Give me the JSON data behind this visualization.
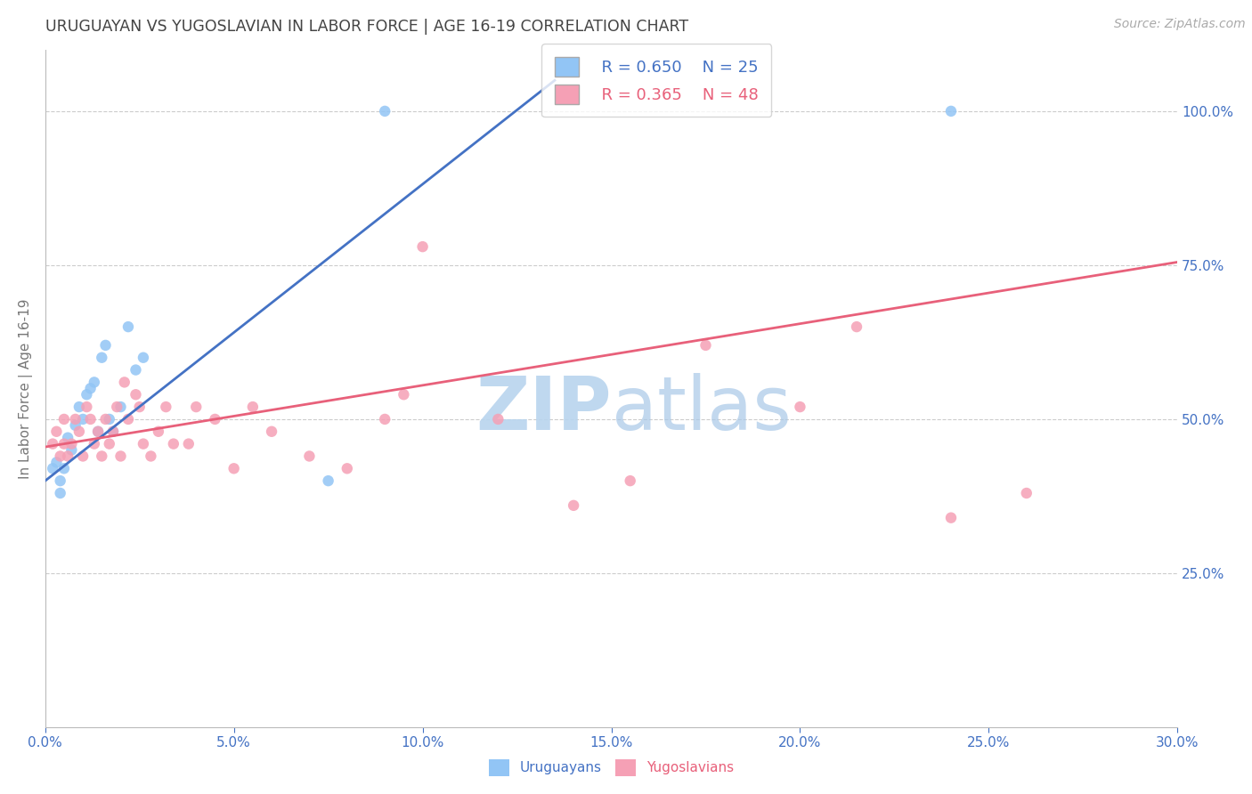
{
  "title": "URUGUAYAN VS YUGOSLAVIAN IN LABOR FORCE | AGE 16-19 CORRELATION CHART",
  "source": "Source: ZipAtlas.com",
  "ylabel_label": "In Labor Force | Age 16-19",
  "xlim": [
    0.0,
    0.3
  ],
  "ylim": [
    0.0,
    1.1
  ],
  "right_yticks": [
    0.25,
    0.5,
    0.75,
    1.0
  ],
  "right_yticklabels": [
    "25.0%",
    "50.0%",
    "75.0%",
    "100.0%"
  ],
  "xtick_values": [
    0.0,
    0.05,
    0.1,
    0.15,
    0.2,
    0.25,
    0.3
  ],
  "xtick_labels": [
    "0.0%",
    "5.0%",
    "10.0%",
    "15.0%",
    "20.0%",
    "25.0%",
    "30.0%"
  ],
  "uruguayan_color": "#92C5F5",
  "yugoslavian_color": "#F5A0B5",
  "uruguayan_line_color": "#4472C4",
  "yugoslavian_line_color": "#E8607A",
  "background_color": "#FFFFFF",
  "watermark_color": "#D6EAF8",
  "legend_r_uruguayan": "R = 0.650",
  "legend_n_uruguayan": "N = 25",
  "legend_r_yugoslavian": "R = 0.365",
  "legend_n_yugoslavian": "N = 48",
  "blue_line_x": [
    0.0,
    0.135
  ],
  "blue_line_y": [
    0.4,
    1.05
  ],
  "pink_line_x": [
    0.0,
    0.3
  ],
  "pink_line_y": [
    0.455,
    0.755
  ],
  "uruguayan_x": [
    0.002,
    0.003,
    0.004,
    0.004,
    0.005,
    0.006,
    0.007,
    0.008,
    0.009,
    0.01,
    0.011,
    0.012,
    0.013,
    0.014,
    0.015,
    0.016,
    0.017,
    0.018,
    0.02,
    0.022,
    0.024,
    0.026,
    0.075,
    0.09,
    0.24
  ],
  "uruguayan_y": [
    0.42,
    0.43,
    0.4,
    0.38,
    0.42,
    0.47,
    0.45,
    0.49,
    0.52,
    0.5,
    0.54,
    0.55,
    0.56,
    0.48,
    0.6,
    0.62,
    0.5,
    0.48,
    0.52,
    0.65,
    0.58,
    0.6,
    0.4,
    1.0,
    1.0
  ],
  "yugoslavian_x": [
    0.002,
    0.003,
    0.004,
    0.005,
    0.005,
    0.006,
    0.007,
    0.008,
    0.009,
    0.01,
    0.011,
    0.012,
    0.013,
    0.014,
    0.015,
    0.016,
    0.017,
    0.018,
    0.019,
    0.02,
    0.021,
    0.022,
    0.024,
    0.025,
    0.026,
    0.028,
    0.03,
    0.032,
    0.034,
    0.038,
    0.04,
    0.045,
    0.05,
    0.055,
    0.06,
    0.07,
    0.08,
    0.09,
    0.095,
    0.1,
    0.12,
    0.14,
    0.155,
    0.175,
    0.2,
    0.215,
    0.24,
    0.26
  ],
  "yugoslavian_y": [
    0.46,
    0.48,
    0.44,
    0.46,
    0.5,
    0.44,
    0.46,
    0.5,
    0.48,
    0.44,
    0.52,
    0.5,
    0.46,
    0.48,
    0.44,
    0.5,
    0.46,
    0.48,
    0.52,
    0.44,
    0.56,
    0.5,
    0.54,
    0.52,
    0.46,
    0.44,
    0.48,
    0.52,
    0.46,
    0.46,
    0.52,
    0.5,
    0.42,
    0.52,
    0.48,
    0.44,
    0.42,
    0.5,
    0.54,
    0.78,
    0.5,
    0.36,
    0.4,
    0.62,
    0.52,
    0.65,
    0.34,
    0.38
  ]
}
